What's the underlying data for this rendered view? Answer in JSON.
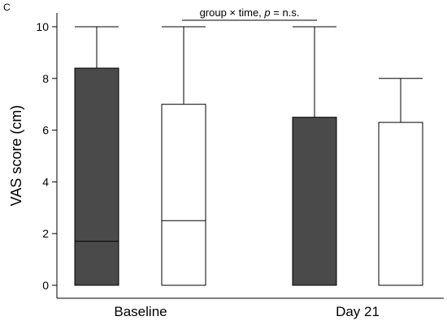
{
  "panel_label": "C",
  "chart_data": {
    "type": "box",
    "ylabel": "VAS score (cm)",
    "xlabel": "",
    "ylim": [
      0,
      10
    ],
    "yticks": [
      "0",
      "2",
      "4",
      "6",
      "8",
      "10"
    ],
    "categories": [
      "Baseline",
      "Day 21"
    ],
    "fills": {
      "dark": "#4a4a4a",
      "light": "#ffffff"
    },
    "boxes": [
      {
        "category": "Baseline",
        "fill": "dark",
        "q1": 0,
        "median": 1.7,
        "q3": 8.4,
        "whisker_high": 10
      },
      {
        "category": "Baseline",
        "fill": "light",
        "q1": 0,
        "median": 2.5,
        "q3": 7.0,
        "whisker_high": 10
      },
      {
        "category": "Day 21",
        "fill": "dark",
        "q1": 0,
        "median": 0,
        "q3": 6.5,
        "whisker_high": 10
      },
      {
        "category": "Day 21",
        "fill": "light",
        "q1": 0,
        "median": 0,
        "q3": 6.3,
        "whisker_high": 8
      }
    ],
    "annotation": {
      "prefix": "group × time, ",
      "p_symbol": "p",
      "suffix": " = n.s."
    }
  }
}
